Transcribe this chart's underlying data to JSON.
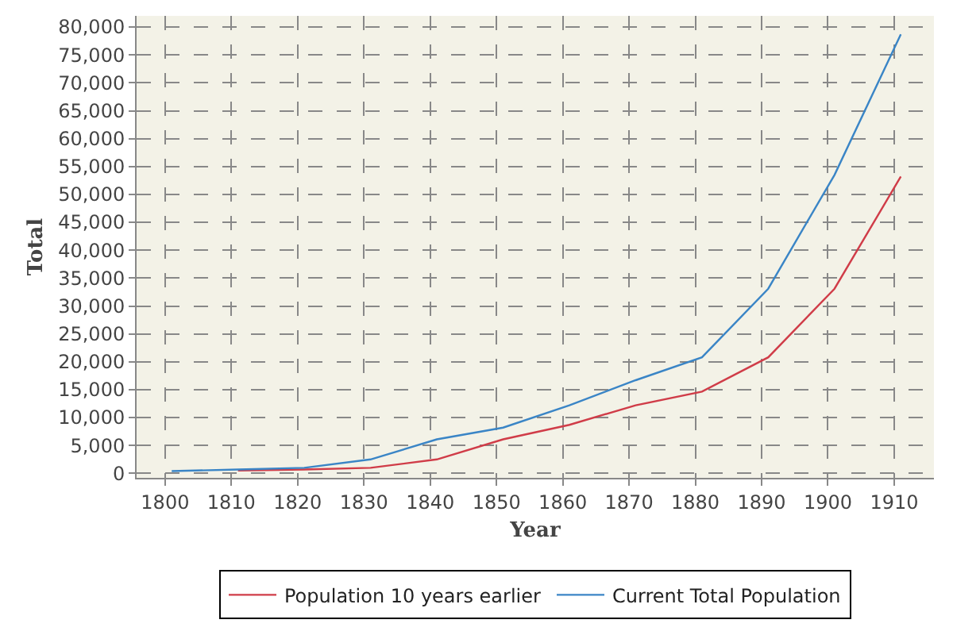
{
  "chart_data": {
    "type": "line",
    "xlabel": "Year",
    "ylabel": "Total",
    "xlim": [
      1795.7,
      1916
    ],
    "xticks": [
      1800,
      1810,
      1820,
      1830,
      1840,
      1850,
      1860,
      1870,
      1880,
      1890,
      1900,
      1910
    ],
    "ylim": [
      -800,
      82000
    ],
    "yticks": [
      {
        "value": 0,
        "label": "0"
      },
      {
        "value": 5000,
        "label": "5,000"
      },
      {
        "value": 10000,
        "label": "10,000"
      },
      {
        "value": 15000,
        "label": "15,000"
      },
      {
        "value": 20000,
        "label": "20,000"
      },
      {
        "value": 25000,
        "label": "25,000"
      },
      {
        "value": 30000,
        "label": "30,000"
      },
      {
        "value": 35000,
        "label": "35,000"
      },
      {
        "value": 40000,
        "label": "40,000"
      },
      {
        "value": 45000,
        "label": "45,000"
      },
      {
        "value": 50000,
        "label": "50,000"
      },
      {
        "value": 55000,
        "label": "55,000"
      },
      {
        "value": 60000,
        "label": "60,000"
      },
      {
        "value": 65000,
        "label": "65,000"
      },
      {
        "value": 70000,
        "label": "70,000"
      },
      {
        "value": 75000,
        "label": "75,000"
      },
      {
        "value": 80000,
        "label": "80,000"
      }
    ],
    "x": [
      1801,
      1811,
      1821,
      1831,
      1841,
      1851,
      1861,
      1871,
      1881,
      1891,
      1901,
      1911
    ],
    "series": [
      {
        "name": "Population 10 years earlier",
        "color": "#d03c48",
        "values": [
          null,
          500,
          700,
          1000,
          2500,
          6100,
          8700,
          12200,
          14650,
          20800,
          33100,
          53200
        ]
      },
      {
        "name": "Current Total Population",
        "color": "#3a85c6",
        "values": [
          400,
          700,
          1000,
          2500,
          6100,
          8200,
          12200,
          16700,
          20800,
          33100,
          53500,
          78700
        ]
      }
    ],
    "grid": true,
    "legend": "bottom",
    "marker": "none",
    "line_style": "solid"
  }
}
